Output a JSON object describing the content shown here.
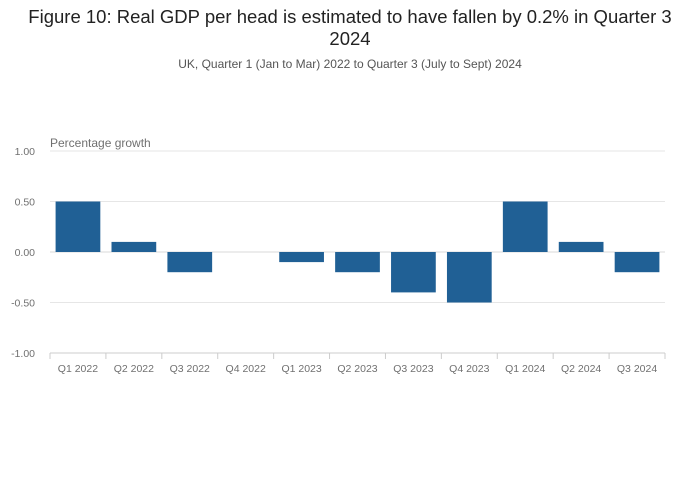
{
  "chart_data": {
    "type": "bar",
    "title": "Figure 10: Real GDP per head is estimated to have fallen by 0.2% in Quarter 3 2024",
    "subtitle": "UK, Quarter 1 (Jan to Mar) 2022 to Quarter 3 (July to Sept) 2024",
    "ylabel": "Percentage growth",
    "xlabel": "",
    "categories": [
      "Q1 2022",
      "Q2 2022",
      "Q3 2022",
      "Q4 2022",
      "Q1 2023",
      "Q2 2023",
      "Q3 2023",
      "Q4 2023",
      "Q1 2024",
      "Q2 2024",
      "Q3 2024"
    ],
    "values": [
      0.5,
      0.1,
      -0.2,
      0.0,
      -0.1,
      -0.2,
      -0.4,
      -0.5,
      0.5,
      0.1,
      -0.2
    ],
    "ylim": [
      -1.0,
      1.0
    ],
    "yticks": [
      "1.00",
      "0.50",
      "0.00",
      "-0.50",
      "-1.00"
    ],
    "grid": true,
    "colors": {
      "bar": "#206095",
      "grid": "#e6e6e6",
      "axis": "#cccccc"
    }
  }
}
